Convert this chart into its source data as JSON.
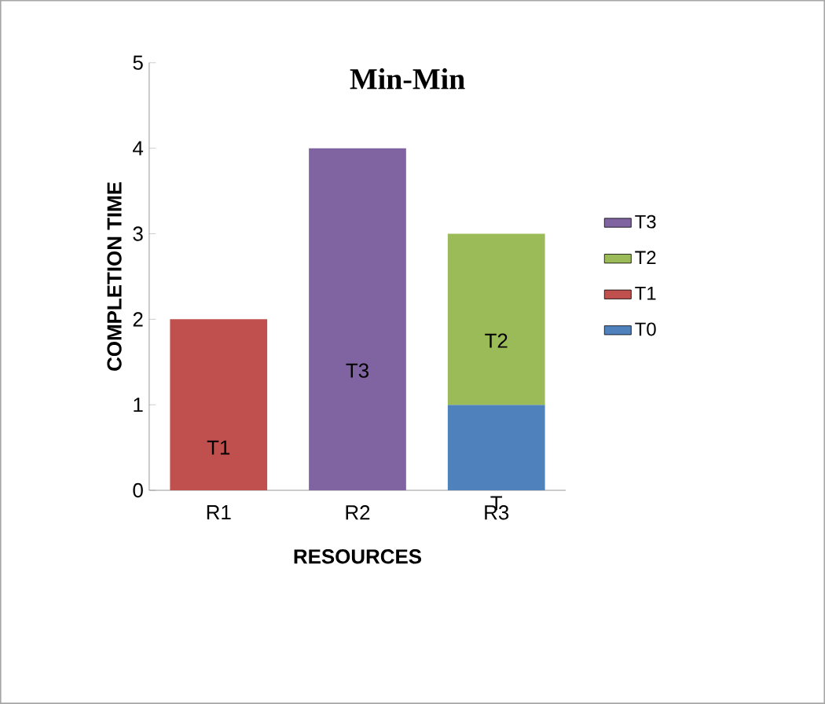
{
  "chart_data": {
    "type": "bar",
    "title": "Min-Min",
    "xlabel": "RESOURCES",
    "ylabel": "COMPLETION TIME",
    "stacked": true,
    "categories": [
      "R1",
      "R2",
      "R3"
    ],
    "series": [
      {
        "name": "T0",
        "color": "#4f81bd",
        "values": [
          null,
          null,
          1
        ]
      },
      {
        "name": "T1",
        "color": "#c0504d",
        "values": [
          2,
          null,
          null
        ]
      },
      {
        "name": "T2",
        "color": "#9bbb59",
        "values": [
          null,
          null,
          2
        ]
      },
      {
        "name": "T3",
        "color": "#8064a2",
        "values": [
          null,
          4,
          null
        ]
      }
    ],
    "ylim": [
      0,
      5
    ],
    "yticks": [
      0,
      1,
      2,
      3,
      4,
      5
    ],
    "legend": "right",
    "annotations": [
      "T1",
      "T3",
      "T2",
      "T"
    ]
  }
}
